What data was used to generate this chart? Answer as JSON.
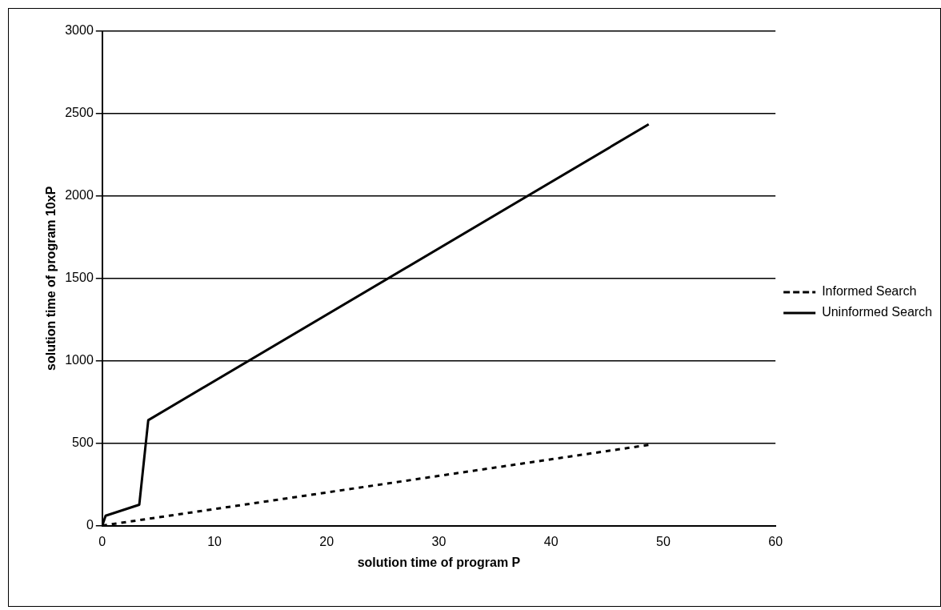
{
  "chart_data": {
    "type": "line",
    "xlabel": "solution time of program P",
    "ylabel": "solution time of program 10xP",
    "xlim": [
      0,
      60
    ],
    "xticks": [
      0,
      10,
      20,
      30,
      40,
      50,
      60
    ],
    "ylim": [
      0,
      3000
    ],
    "yticks": [
      0,
      500,
      1000,
      1500,
      2000,
      2500,
      3000
    ],
    "grid": "y",
    "legend": "right",
    "marker": "none",
    "series": [
      {
        "name": "Informed Search",
        "color": "#000000",
        "line_style": "dashed",
        "x": [
          0,
          48.7
        ],
        "values": [
          0,
          490
        ]
      },
      {
        "name": "Uninformed Search",
        "color": "#000000",
        "line_style": "solid",
        "x": [
          0,
          0.3,
          3.3,
          4.1,
          48.7
        ],
        "values": [
          0,
          60,
          127,
          640,
          2435
        ]
      }
    ]
  }
}
